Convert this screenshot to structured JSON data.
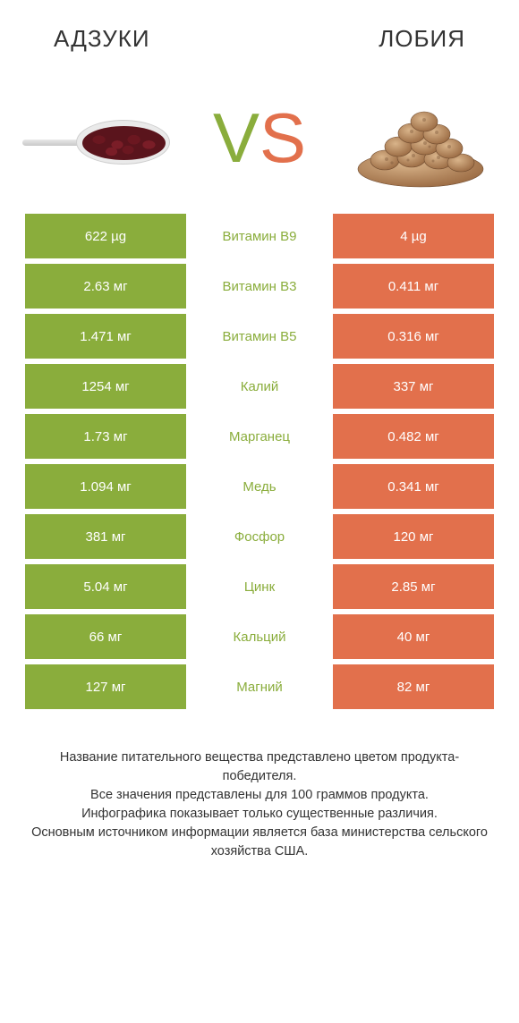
{
  "colors": {
    "green": "#8aad3c",
    "orange": "#e2704c",
    "text": "#333333",
    "bg": "#ffffff"
  },
  "titles": {
    "left": "АДЗУКИ",
    "right": "ЛОБИЯ"
  },
  "vs": {
    "v": "V",
    "s": "S"
  },
  "rows": [
    {
      "left": "622 µg",
      "nutrient": "Витамин B9",
      "right": "4 µg",
      "winner": "left"
    },
    {
      "left": "2.63 мг",
      "nutrient": "Витамин B3",
      "right": "0.411 мг",
      "winner": "left"
    },
    {
      "left": "1.471 мг",
      "nutrient": "Витамин B5",
      "right": "0.316 мг",
      "winner": "left"
    },
    {
      "left": "1254 мг",
      "nutrient": "Калий",
      "right": "337 мг",
      "winner": "left"
    },
    {
      "left": "1.73 мг",
      "nutrient": "Марганец",
      "right": "0.482 мг",
      "winner": "left"
    },
    {
      "left": "1.094 мг",
      "nutrient": "Медь",
      "right": "0.341 мг",
      "winner": "left"
    },
    {
      "left": "381 мг",
      "nutrient": "Фосфор",
      "right": "120 мг",
      "winner": "left"
    },
    {
      "left": "5.04 мг",
      "nutrient": "Цинк",
      "right": "2.85 мг",
      "winner": "left"
    },
    {
      "left": "66 мг",
      "nutrient": "Кальций",
      "right": "40 мг",
      "winner": "left"
    },
    {
      "left": "127 мг",
      "nutrient": "Магний",
      "right": "82 мг",
      "winner": "left"
    }
  ],
  "footnote": "Название питательного вещества представлено цветом продукта-победителя.\nВсе значения представлены для 100 граммов продукта.\nИнфографика показывает только существенные различия.\nОсновным источником информации является база министерства сельского хозяйства США."
}
